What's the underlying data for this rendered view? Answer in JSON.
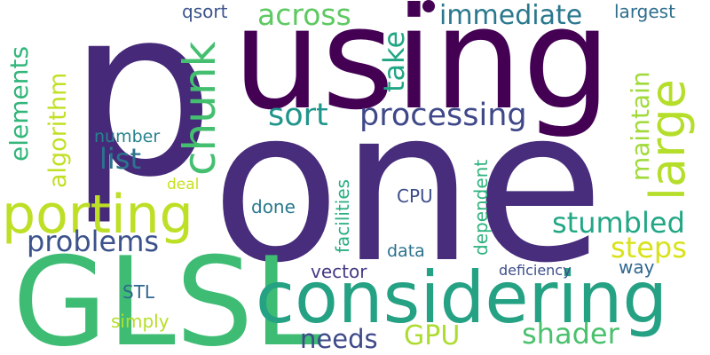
{
  "words": {
    "one": {
      "text": "one",
      "color": "#472d7b"
    },
    "p": {
      "text": "p",
      "color": "#462a79"
    },
    "using": {
      "text": "using",
      "color": "#440154"
    },
    "glsl": {
      "text": "GLSL",
      "color": "#3ebc74"
    },
    "considering": {
      "text": "considering",
      "color": "#25a184"
    },
    "porting": {
      "text": "porting",
      "color": "#bddf26"
    },
    "chunk": {
      "text": "chunk",
      "color": "#44bf70"
    },
    "large": {
      "text": "large",
      "color": "#b5de2b"
    },
    "processing": {
      "text": "processing",
      "color": "#3f4889"
    },
    "sort": {
      "text": "sort",
      "color": "#1f958b"
    },
    "across": {
      "text": "across",
      "color": "#5ec962"
    },
    "immediate": {
      "text": "immediate",
      "color": "#2a788e"
    },
    "stumbled": {
      "text": "stumbled",
      "color": "#22a785"
    },
    "problems": {
      "text": "problems",
      "color": "#3b528b"
    },
    "steps": {
      "text": "steps",
      "color": "#d8e219"
    },
    "shader": {
      "text": "shader",
      "color": "#4ac16d"
    },
    "needs": {
      "text": "needs",
      "color": "#3e4989"
    },
    "gpu": {
      "text": "GPU",
      "color": "#addc30"
    },
    "list": {
      "text": "list",
      "color": "#2c728e"
    },
    "take": {
      "text": "take",
      "color": "#21a685"
    },
    "maintain": {
      "text": "maintain",
      "color": "#a0da39"
    },
    "elements": {
      "text": "elements",
      "color": "#32b67a"
    },
    "algorithm": {
      "text": "algorithm",
      "color": "#c2df23"
    },
    "largest": {
      "text": "largest",
      "color": "#2e6e8e"
    },
    "qsort": {
      "text": "qsort",
      "color": "#3a538b"
    },
    "number": {
      "text": "number",
      "color": "#26828e"
    },
    "deal": {
      "text": "deal",
      "color": "#c8e020"
    },
    "done": {
      "text": "done",
      "color": "#2a788e"
    },
    "cpu": {
      "text": "CPU",
      "color": "#3d4d8a"
    },
    "facilities": {
      "text": "facilities",
      "color": "#29af7f"
    },
    "data": {
      "text": "data",
      "color": "#2c718e"
    },
    "dependent": {
      "text": "dependent",
      "color": "#2db27d"
    },
    "vector": {
      "text": "vector",
      "color": "#443a83"
    },
    "stl": {
      "text": "STL",
      "color": "#31688e"
    },
    "simply": {
      "text": "simply",
      "color": "#b5de2b"
    },
    "deficiency": {
      "text": "deficiency",
      "color": "#3d4e8a"
    },
    "way": {
      "text": "way",
      "color": "#31688e"
    }
  },
  "decorations": {
    "dot_color": "#440154"
  }
}
